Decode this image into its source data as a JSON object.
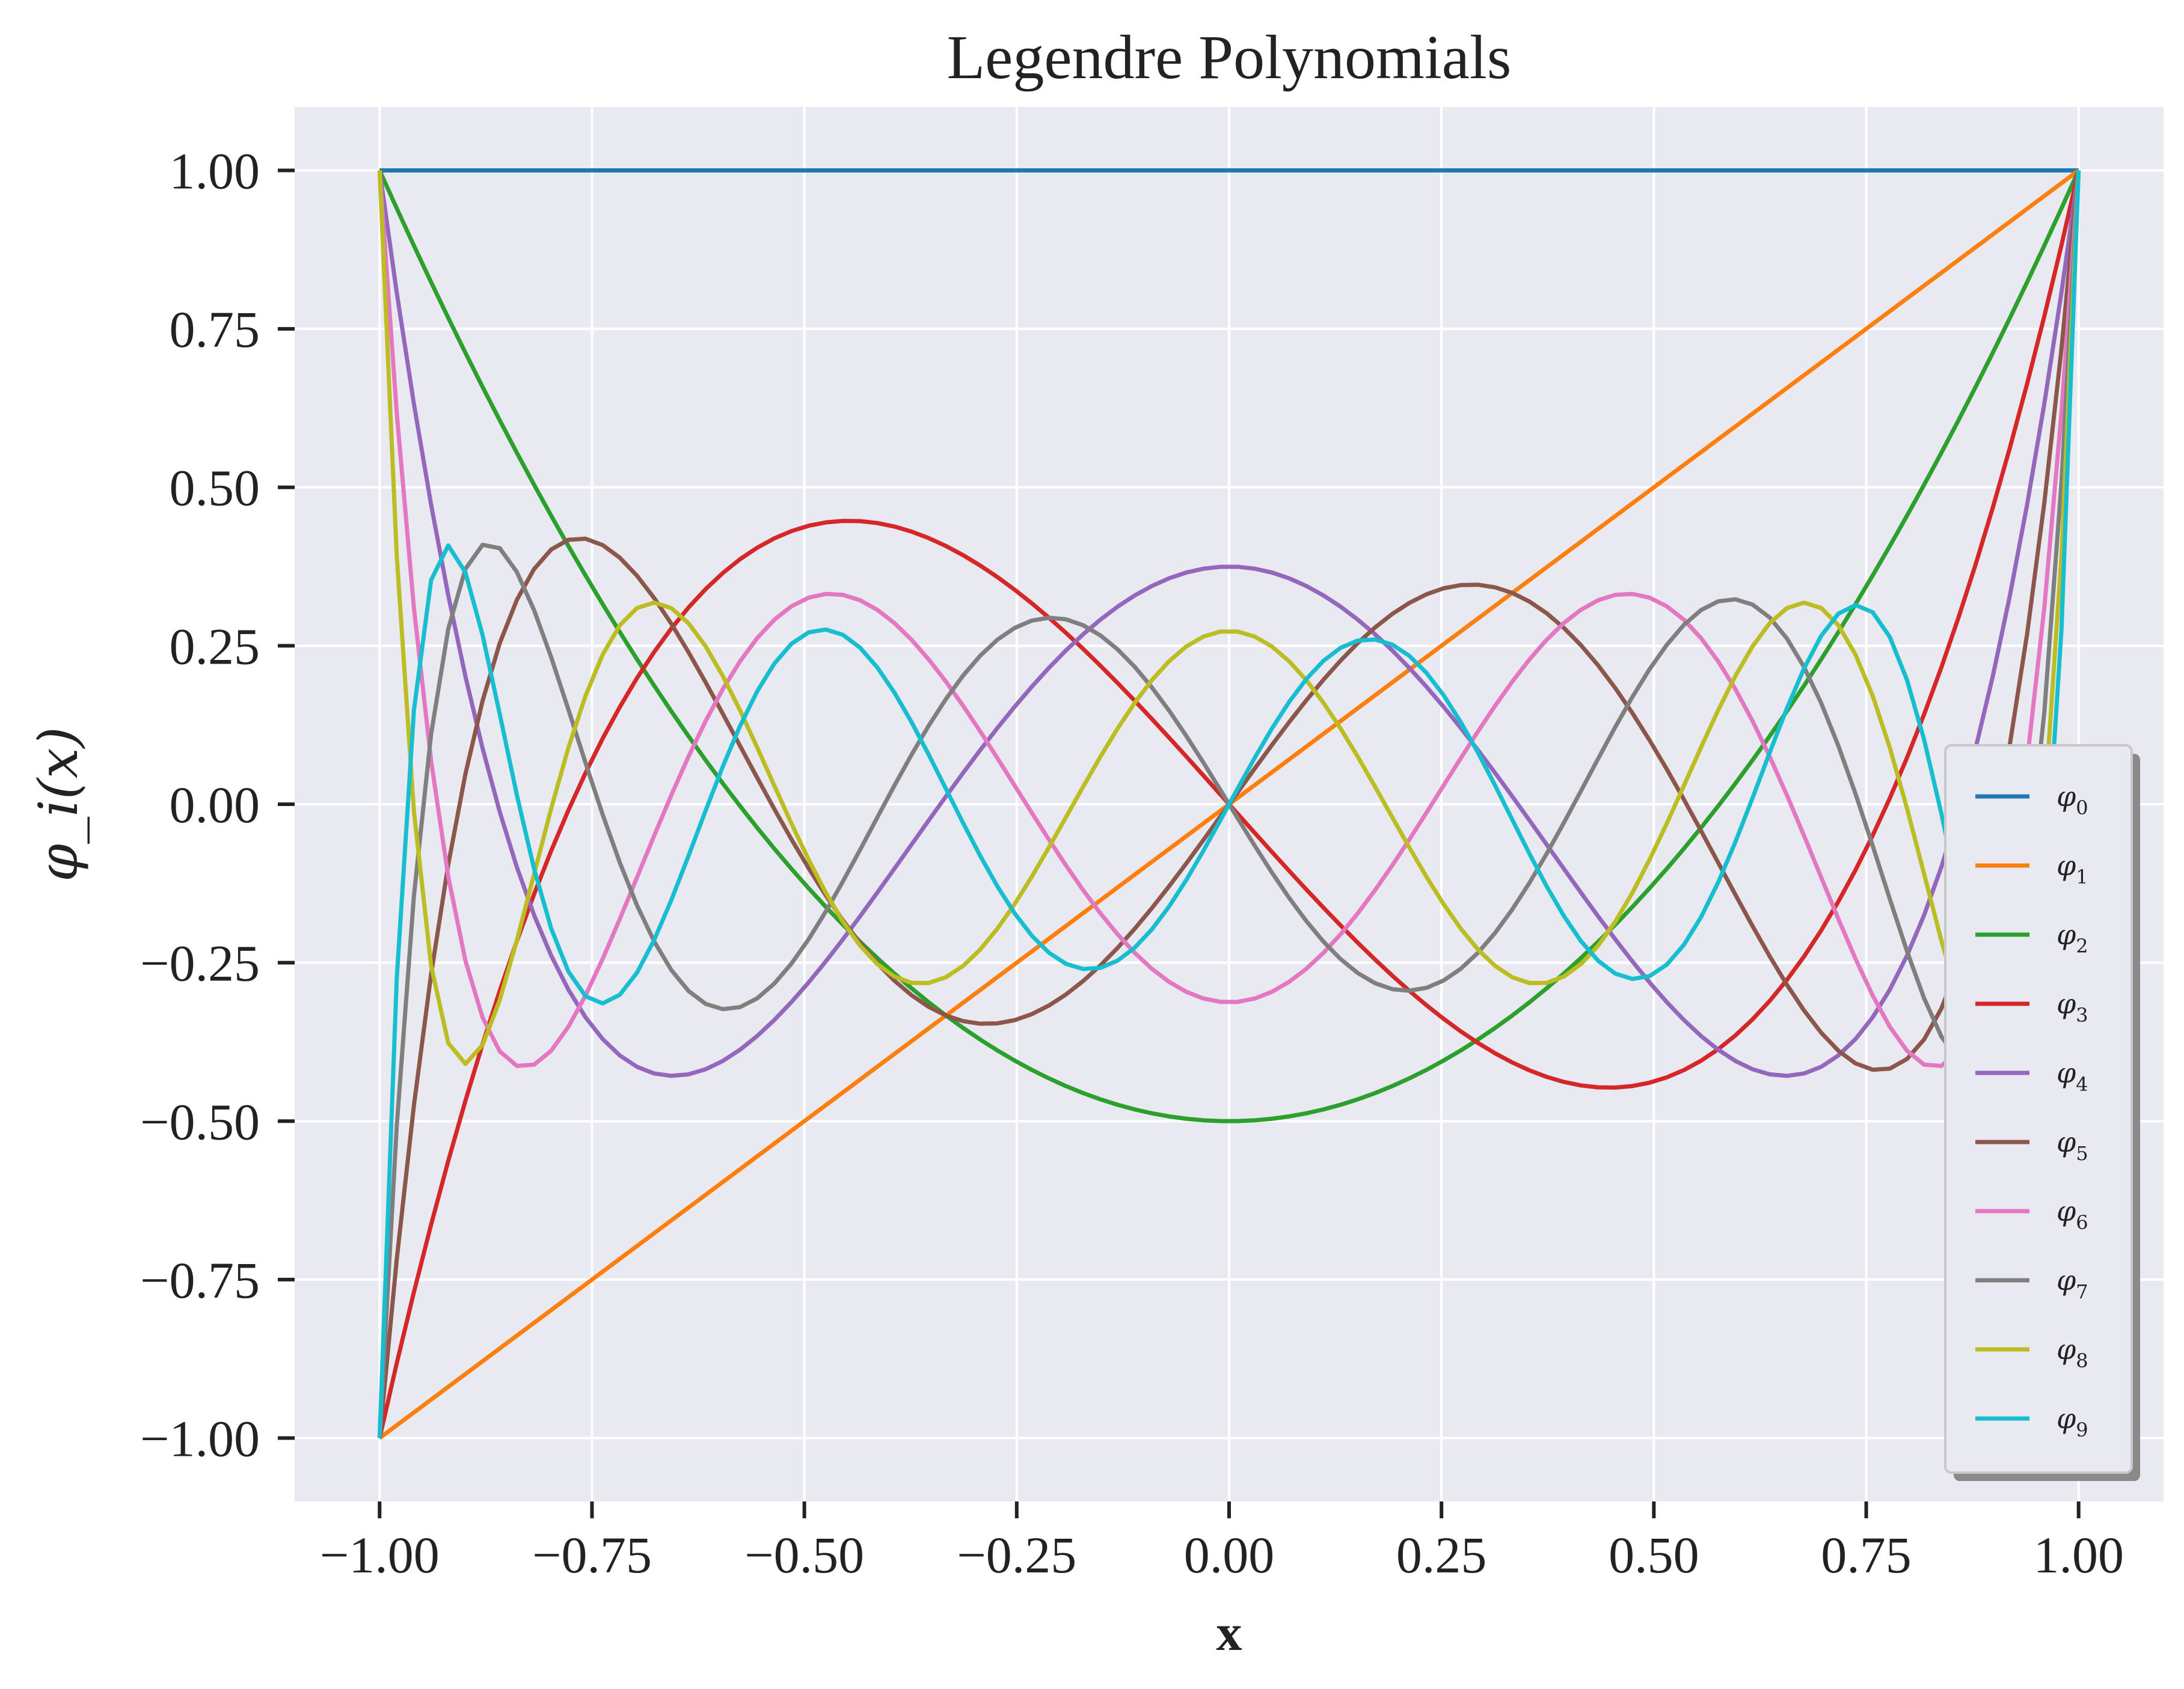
{
  "chart_data": {
    "type": "line",
    "title": "Legendre Polynomials",
    "xlabel": "x",
    "ylabel": "φ_i(x)",
    "xlim": [
      -1.1,
      1.1
    ],
    "ylim": [
      -1.1,
      1.1
    ],
    "x_ticks": [
      "−1.00",
      "−0.75",
      "−0.50",
      "−0.25",
      "0.00",
      "0.25",
      "0.50",
      "0.75",
      "1.00"
    ],
    "x_tick_values": [
      -1.0,
      -0.75,
      -0.5,
      -0.25,
      0.0,
      0.25,
      0.5,
      0.75,
      1.0
    ],
    "y_ticks": [
      "1.00",
      "0.75",
      "0.50",
      "0.25",
      "0.00",
      "−0.25",
      "−0.50",
      "−0.75",
      "−1.00"
    ],
    "y_tick_values": [
      1.0,
      0.75,
      0.5,
      0.25,
      0.0,
      -0.25,
      -0.5,
      -0.75,
      -1.0
    ],
    "grid": true,
    "legend_position": "lower-right",
    "background": "#e9e9f1",
    "x_samples": 100,
    "x_range": [
      -1.0,
      1.0
    ],
    "series": [
      {
        "name": "φ",
        "sub": "0",
        "degree": 0,
        "color": "#1f77b4"
      },
      {
        "name": "φ",
        "sub": "1",
        "degree": 1,
        "color": "#ff7f0e"
      },
      {
        "name": "φ",
        "sub": "2",
        "degree": 2,
        "color": "#2ca02c"
      },
      {
        "name": "φ",
        "sub": "3",
        "degree": 3,
        "color": "#d62728"
      },
      {
        "name": "φ",
        "sub": "4",
        "degree": 4,
        "color": "#9467bd"
      },
      {
        "name": "φ",
        "sub": "5",
        "degree": 5,
        "color": "#8c564b"
      },
      {
        "name": "φ",
        "sub": "6",
        "degree": 6,
        "color": "#e377c2"
      },
      {
        "name": "φ",
        "sub": "7",
        "degree": 7,
        "color": "#7f7f7f"
      },
      {
        "name": "φ",
        "sub": "8",
        "degree": 8,
        "color": "#bcbd22"
      },
      {
        "name": "φ",
        "sub": "9",
        "degree": 9,
        "color": "#17becf"
      }
    ]
  }
}
